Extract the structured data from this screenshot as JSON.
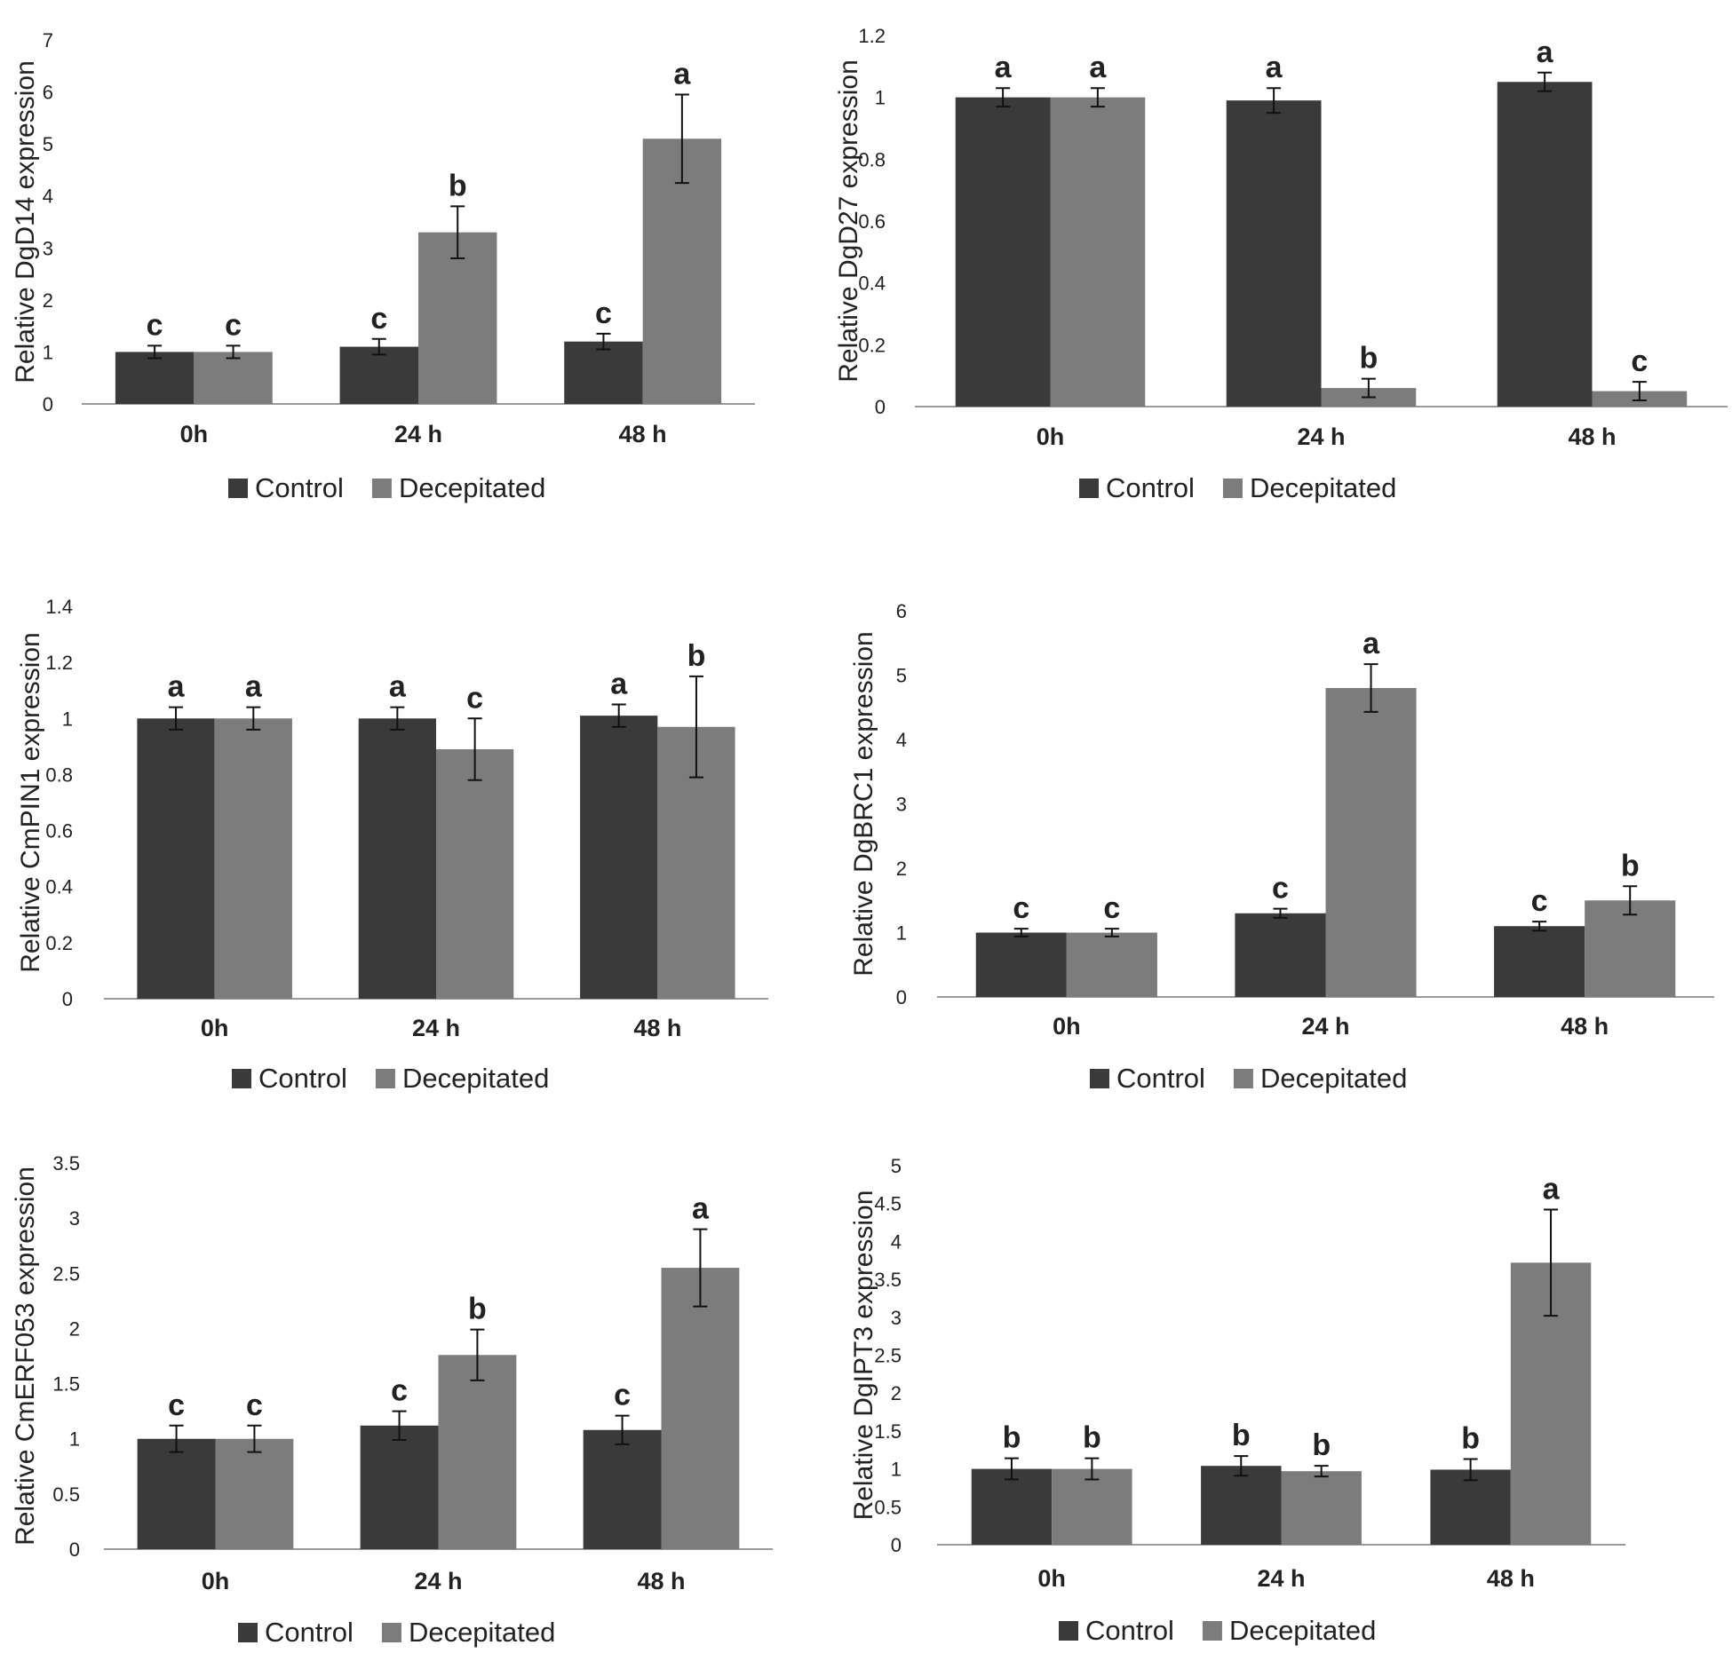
{
  "colors": {
    "control": "#3a3a3a",
    "decepitated": "#7c7c7c",
    "axis": "#9a9a9a",
    "error": "#111111"
  },
  "chart_data": [
    {
      "type": "bar",
      "ylabel": "Relative DgD14 expression",
      "categories": [
        "0h",
        "24 h",
        "48 h"
      ],
      "ylim": [
        0,
        7
      ],
      "yticks": [
        "0",
        "1",
        "2",
        "3",
        "4",
        "5",
        "6",
        "7"
      ],
      "series": [
        {
          "name": "Control",
          "values": [
            1.0,
            1.1,
            1.2
          ],
          "errors": [
            0.12,
            0.15,
            0.15
          ],
          "letters": [
            "c",
            "c",
            "c"
          ]
        },
        {
          "name": "Decepitated",
          "values": [
            1.0,
            3.3,
            5.1
          ],
          "errors": [
            0.12,
            0.5,
            0.85
          ],
          "letters": [
            "c",
            "b",
            "a"
          ]
        }
      ]
    },
    {
      "type": "bar",
      "ylabel": "Relative DgD27 expression",
      "categories": [
        "0h",
        "24 h",
        "48 h"
      ],
      "ylim": [
        0,
        1.2
      ],
      "yticks": [
        "0",
        "0.2",
        "0.4",
        "0.6",
        "0.8",
        "1",
        "1.2"
      ],
      "series": [
        {
          "name": "Control",
          "values": [
            1.0,
            0.99,
            1.05
          ],
          "errors": [
            0.03,
            0.04,
            0.03
          ],
          "letters": [
            "a",
            "a",
            "a"
          ]
        },
        {
          "name": "Decepitated",
          "values": [
            1.0,
            0.06,
            0.05
          ],
          "errors": [
            0.03,
            0.03,
            0.03
          ],
          "letters": [
            "a",
            "b",
            "c"
          ]
        }
      ]
    },
    {
      "type": "bar",
      "ylabel": "Relative CmPIN1 expression",
      "categories": [
        "0h",
        "24 h",
        "48 h"
      ],
      "ylim": [
        0,
        1.4
      ],
      "yticks": [
        "0",
        "0.2",
        "0.4",
        "0.6",
        "0.8",
        "1",
        "1.2",
        "1.4"
      ],
      "series": [
        {
          "name": "Control",
          "values": [
            1.0,
            1.0,
            1.01
          ],
          "errors": [
            0.04,
            0.04,
            0.04
          ],
          "letters": [
            "a",
            "a",
            "a"
          ]
        },
        {
          "name": "Decepitated",
          "values": [
            1.0,
            0.89,
            0.97
          ],
          "errors": [
            0.04,
            0.11,
            0.18
          ],
          "letters": [
            "a",
            "c",
            "b"
          ]
        }
      ]
    },
    {
      "type": "bar",
      "ylabel": "Relative DgBRC1 expression",
      "categories": [
        "0h",
        "24 h",
        "48 h"
      ],
      "ylim": [
        0,
        6
      ],
      "yticks": [
        "0",
        "1",
        "2",
        "3",
        "4",
        "5",
        "6"
      ],
      "series": [
        {
          "name": "Control",
          "values": [
            1.0,
            1.3,
            1.1
          ],
          "errors": [
            0.06,
            0.07,
            0.07
          ],
          "letters": [
            "c",
            "c",
            "c"
          ]
        },
        {
          "name": "Decepitated",
          "values": [
            1.0,
            4.8,
            1.5
          ],
          "errors": [
            0.06,
            0.37,
            0.22
          ],
          "letters": [
            "c",
            "a",
            "b"
          ]
        }
      ]
    },
    {
      "type": "bar",
      "ylabel": "Relative CmERF053 expression",
      "categories": [
        "0h",
        "24 h",
        "48 h"
      ],
      "ylim": [
        0,
        3.5
      ],
      "yticks": [
        "0",
        "0.5",
        "1",
        "1.5",
        "2",
        "2.5",
        "3",
        "3.5"
      ],
      "series": [
        {
          "name": "Control",
          "values": [
            1.0,
            1.12,
            1.08
          ],
          "errors": [
            0.12,
            0.13,
            0.13
          ],
          "letters": [
            "c",
            "c",
            "c"
          ]
        },
        {
          "name": "Decepitated",
          "values": [
            1.0,
            1.76,
            2.55
          ],
          "errors": [
            0.12,
            0.23,
            0.35
          ],
          "letters": [
            "c",
            "b",
            "a"
          ]
        }
      ]
    },
    {
      "type": "bar",
      "ylabel": "Relative DgIPT3 expression",
      "categories": [
        "0h",
        "24 h",
        "48 h"
      ],
      "ylim": [
        0,
        5
      ],
      "yticks": [
        "0",
        "0.5",
        "1",
        "1.5",
        "2",
        "2.5",
        "3",
        "3.5",
        "4",
        "4.5",
        "5"
      ],
      "series": [
        {
          "name": "Control",
          "values": [
            1.0,
            1.04,
            0.99
          ],
          "errors": [
            0.14,
            0.13,
            0.14
          ],
          "letters": [
            "b",
            "b",
            "b"
          ]
        },
        {
          "name": "Decepitated",
          "values": [
            1.0,
            0.97,
            3.72
          ],
          "errors": [
            0.14,
            0.07,
            0.7
          ],
          "letters": [
            "b",
            "b",
            "a"
          ]
        }
      ]
    }
  ]
}
